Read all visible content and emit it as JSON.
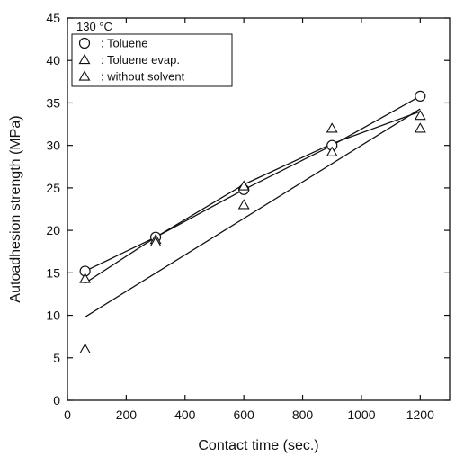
{
  "chart_data": {
    "type": "scatter",
    "title": "",
    "annotation": "130 °C",
    "xlabel": "Contact time (sec.)",
    "ylabel": "Autoadhesion strength (MPa)",
    "xlim": [
      0,
      1300
    ],
    "ylim": [
      0,
      45
    ],
    "xticks": [
      0,
      200,
      400,
      600,
      800,
      1000,
      1200
    ],
    "yticks": [
      0,
      5,
      10,
      15,
      20,
      25,
      30,
      35,
      40,
      45
    ],
    "grid": false,
    "legend_position": "top-left",
    "series": [
      {
        "name": ": Toluene",
        "marker": "circle",
        "points": [
          [
            60,
            15.2
          ],
          [
            300,
            19.2
          ],
          [
            600,
            24.8
          ],
          [
            900,
            30.0
          ],
          [
            1200,
            35.8
          ]
        ],
        "line": [
          [
            60,
            15.2
          ],
          [
            300,
            19.2
          ],
          [
            600,
            24.8
          ],
          [
            900,
            30.0
          ],
          [
            1200,
            35.8
          ]
        ]
      },
      {
        "name": ": Toluene evap.",
        "marker": "triangle",
        "points": [
          [
            60,
            14.3
          ],
          [
            300,
            18.9
          ],
          [
            600,
            25.2
          ],
          [
            900,
            29.2
          ],
          [
            1200,
            33.5
          ]
        ],
        "line": [
          [
            60,
            13.8
          ],
          [
            300,
            19.2
          ],
          [
            600,
            25.4
          ],
          [
            900,
            30.2
          ],
          [
            1200,
            34.0
          ]
        ]
      },
      {
        "name": ": without solvent",
        "marker": "triangle",
        "points": [
          [
            60,
            6.0
          ],
          [
            300,
            18.6
          ],
          [
            600,
            23.0
          ],
          [
            900,
            32.0
          ],
          [
            1200,
            32.0
          ]
        ],
        "line": [
          [
            60,
            9.8
          ],
          [
            1200,
            34.3
          ]
        ]
      }
    ]
  }
}
